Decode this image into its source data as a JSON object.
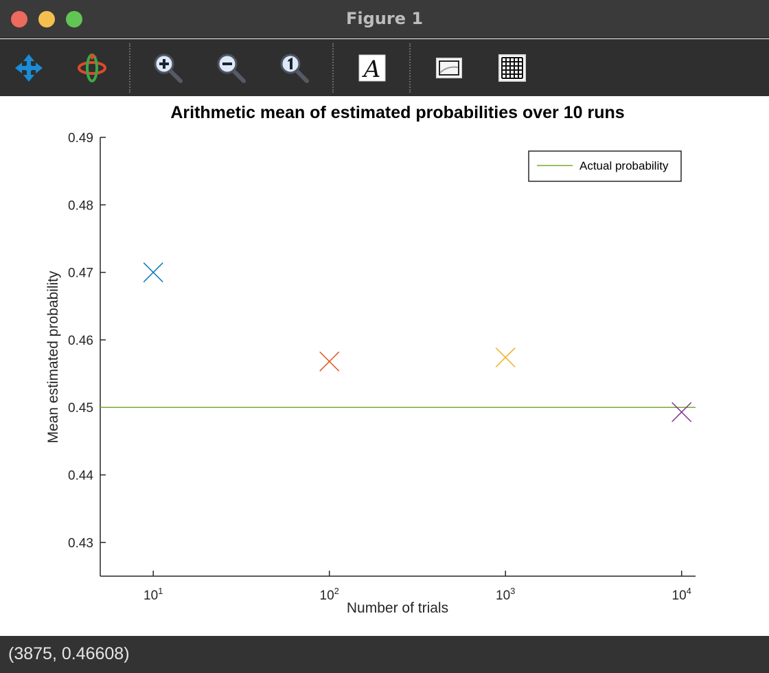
{
  "window": {
    "title": "Figure 1"
  },
  "toolbar": {
    "tools": [
      {
        "name": "pan-icon"
      },
      {
        "name": "rotate-icon"
      },
      {
        "name": "zoom-in-icon"
      },
      {
        "name": "zoom-out-icon"
      },
      {
        "name": "zoom-reset-icon"
      },
      {
        "name": "insert-text-icon"
      },
      {
        "name": "axes-box-icon"
      },
      {
        "name": "grid-icon"
      }
    ]
  },
  "status": {
    "coords": "(3875, 0.46608)"
  },
  "chart_data": {
    "type": "scatter",
    "title": "Arithmetic mean of estimated probabilities over 10 runs",
    "xlabel": "Number of trials",
    "ylabel": "Mean estimated probability",
    "xscale": "log",
    "xlim": [
      5,
      12000
    ],
    "ylim": [
      0.425,
      0.49
    ],
    "xticks": [
      {
        "value": 10,
        "base": "10",
        "exp": "1"
      },
      {
        "value": 100,
        "base": "10",
        "exp": "2"
      },
      {
        "value": 1000,
        "base": "10",
        "exp": "3"
      },
      {
        "value": 10000,
        "base": "10",
        "exp": "4"
      }
    ],
    "yticks": [
      {
        "value": 0.43,
        "label": "0.43"
      },
      {
        "value": 0.44,
        "label": "0.44"
      },
      {
        "value": 0.45,
        "label": "0.45"
      },
      {
        "value": 0.46,
        "label": "0.46"
      },
      {
        "value": 0.47,
        "label": "0.47"
      },
      {
        "value": 0.48,
        "label": "0.48"
      },
      {
        "value": 0.49,
        "label": "0.49"
      }
    ],
    "points": [
      {
        "x": 10,
        "y": 0.47,
        "color": "#0072bd"
      },
      {
        "x": 100,
        "y": 0.4568,
        "color": "#d95319"
      },
      {
        "x": 1000,
        "y": 0.4574,
        "color": "#edb120"
      },
      {
        "x": 10000,
        "y": 0.4493,
        "color": "#7e2f8e"
      }
    ],
    "reference_line": {
      "name": "Actual probability",
      "y": 0.45,
      "color": "#77ac30"
    },
    "legend": {
      "position": "top-right",
      "entries": [
        "Actual probability"
      ]
    },
    "grid": false
  }
}
